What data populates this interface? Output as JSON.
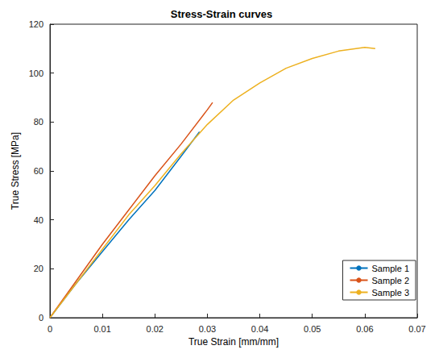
{
  "chart_data": {
    "type": "line",
    "title": "Stress-Strain curves",
    "x_label": "True Strain [mm/mm]",
    "y_label": "True Stress [MPa]",
    "xlim": [
      0,
      0.07
    ],
    "xticks": [
      0,
      0.01,
      0.02,
      0.03,
      0.04,
      0.05,
      0.06,
      0.07
    ],
    "ylim": [
      0,
      120
    ],
    "yticks": [
      0,
      20,
      40,
      60,
      80,
      100,
      120
    ],
    "grid": false,
    "legend": "lower right",
    "marker": "none",
    "line_style": "solid",
    "series": [
      {
        "name": "Sample 1",
        "color": "#0072bd",
        "x": [
          0,
          0.005,
          0.01,
          0.015,
          0.02,
          0.025,
          0.0285
        ],
        "values": [
          0,
          14,
          27,
          40,
          52,
          66,
          76
        ]
      },
      {
        "name": "Sample 2",
        "color": "#d95319",
        "x": [
          0,
          0.005,
          0.01,
          0.015,
          0.02,
          0.025,
          0.03,
          0.031
        ],
        "values": [
          0,
          15,
          30,
          44,
          58,
          71,
          85,
          88
        ]
      },
      {
        "name": "Sample 3",
        "color": "#edb120",
        "x": [
          0,
          0.005,
          0.01,
          0.015,
          0.02,
          0.025,
          0.03,
          0.035,
          0.04,
          0.045,
          0.05,
          0.055,
          0.06,
          0.062
        ],
        "values": [
          0,
          14,
          28,
          42,
          54,
          67,
          79,
          89,
          96,
          102,
          106,
          109,
          110.5,
          110
        ]
      }
    ]
  }
}
